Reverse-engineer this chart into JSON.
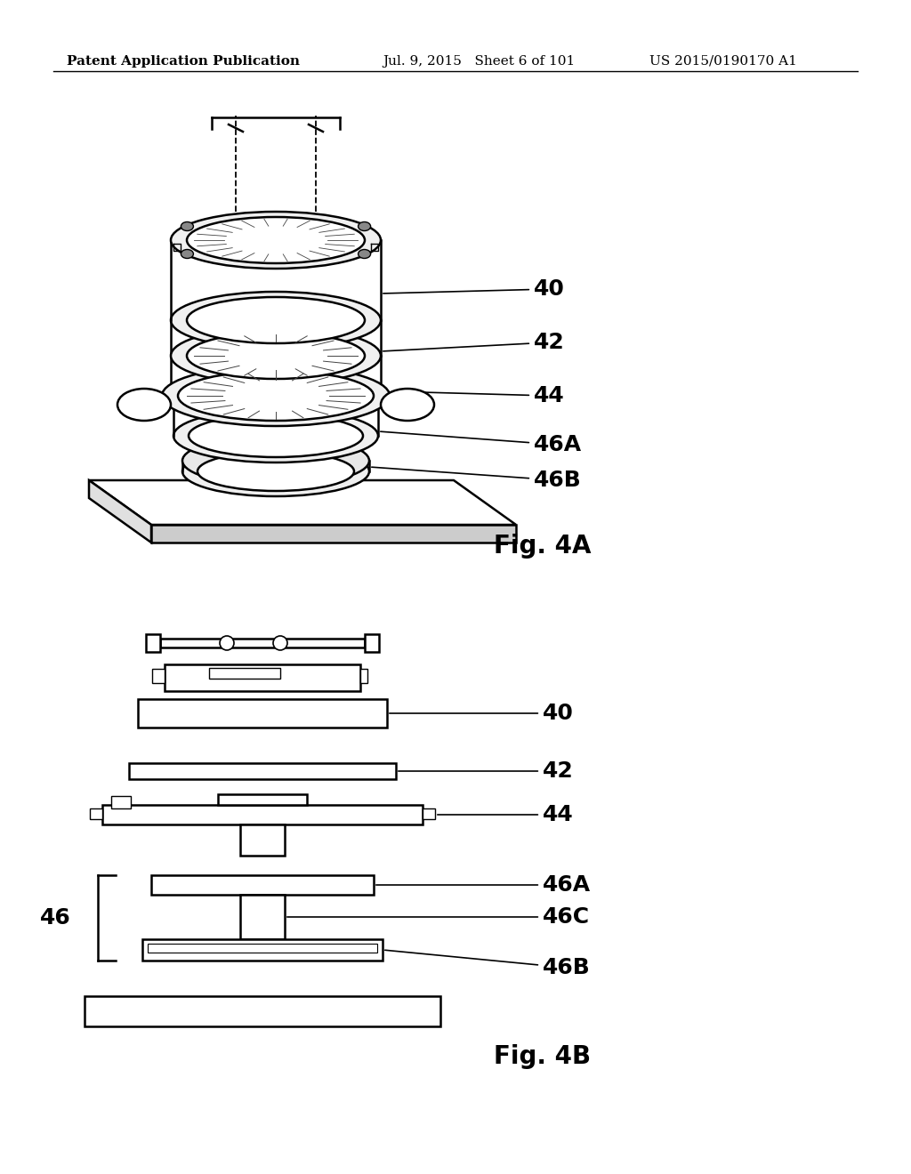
{
  "background_color": "#ffffff",
  "header_left": "Patent Application Publication",
  "header_mid": "Jul. 9, 2015   Sheet 6 of 101",
  "header_right": "US 2015/0190170 A1",
  "header_fontsize": 11,
  "fig4a_label": "Fig. 4A",
  "fig4b_label": "Fig. 4B",
  "label_fontsize": 18,
  "annotation_fontsize": 18,
  "line_color": "#000000",
  "lw": 1.8
}
